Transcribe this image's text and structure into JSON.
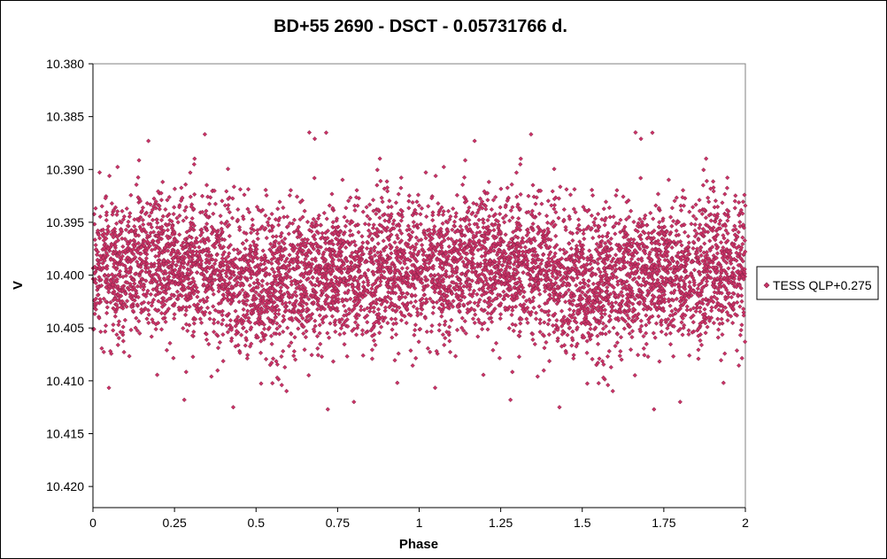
{
  "chart_data": {
    "type": "scatter",
    "title": "BD+55 2690 - DSCT - 0.05731766  d.",
    "xlabel": "Phase",
    "ylabel": "V",
    "xlim": [
      0,
      2
    ],
    "ylim": [
      10.38,
      10.422
    ],
    "y_inverted": true,
    "x_ticks": [
      0,
      0.25,
      0.5,
      0.75,
      1,
      1.25,
      1.5,
      1.75,
      2
    ],
    "x_tick_labels": [
      "0",
      "0.25",
      "0.5",
      "0.75",
      "1",
      "1.25",
      "1.5",
      "1.75",
      "2"
    ],
    "y_ticks": [
      10.38,
      10.385,
      10.39,
      10.395,
      10.4,
      10.405,
      10.41,
      10.415,
      10.42
    ],
    "y_tick_labels": [
      "10.380",
      "10.385",
      "10.390",
      "10.395",
      "10.400",
      "10.405",
      "10.410",
      "10.415",
      "10.420"
    ],
    "grid": false,
    "legend_position": "right",
    "series": [
      {
        "name": "TESS QLP+0.275",
        "color": "#cc3366",
        "edge_color": "#7a1f44",
        "marker": "diamond",
        "mean_curve": {
          "phase": [
            0,
            0.25,
            0.5,
            0.75,
            1
          ],
          "mean_mag": [
            10.3994,
            10.3988,
            10.4008,
            10.3998,
            10.3994
          ]
        },
        "scatter_sigma": 0.0033,
        "n_points_per_cycle": 3000,
        "outliers": [
          {
            "x": 0.17,
            "y": 10.3873
          },
          {
            "x": 0.68,
            "y": 10.3871
          },
          {
            "x": 1.17,
            "y": 10.3873
          },
          {
            "x": 1.68,
            "y": 10.3871
          },
          {
            "x": 0.28,
            "y": 10.4118
          },
          {
            "x": 0.8,
            "y": 10.412
          },
          {
            "x": 0.72,
            "y": 10.4127
          },
          {
            "x": 1.28,
            "y": 10.4118
          },
          {
            "x": 1.72,
            "y": 10.4127
          },
          {
            "x": 1.8,
            "y": 10.412
          }
        ]
      }
    ]
  }
}
